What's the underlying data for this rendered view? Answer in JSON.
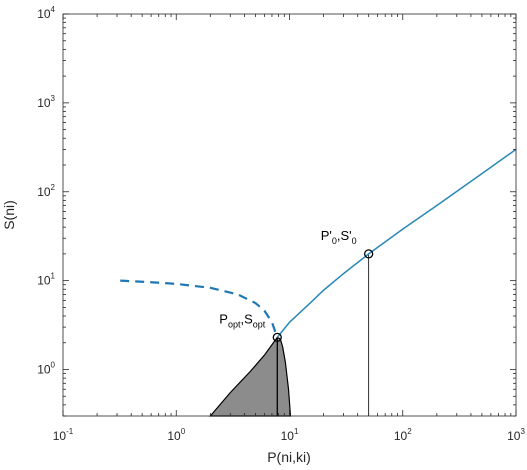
{
  "chart_data": {
    "type": "line",
    "xlabel": "P(ni,ki)",
    "ylabel": "S(ni)",
    "xscale": "log",
    "yscale": "log",
    "xlim": [
      0.1,
      1000
    ],
    "ylim": [
      0.3,
      10000
    ],
    "xticks": [
      {
        "base": "10",
        "exp": "-1",
        "value": 0.1
      },
      {
        "base": "10",
        "exp": "0",
        "value": 1
      },
      {
        "base": "10",
        "exp": "1",
        "value": 10
      },
      {
        "base": "10",
        "exp": "2",
        "value": 100
      },
      {
        "base": "10",
        "exp": "3",
        "value": 1000
      }
    ],
    "yticks": [
      {
        "base": "10",
        "exp": "0",
        "value": 1
      },
      {
        "base": "10",
        "exp": "1",
        "value": 10
      },
      {
        "base": "10",
        "exp": "2",
        "value": 100
      },
      {
        "base": "10",
        "exp": "3",
        "value": 1000
      },
      {
        "base": "10",
        "exp": "4",
        "value": 10000
      }
    ],
    "grid": false,
    "series": [
      {
        "style": "dashed",
        "color": "#1f77b4",
        "x": [
          0.32,
          0.6,
          1.0,
          2.0,
          3.5,
          5.0,
          6.0,
          7.0,
          7.8
        ],
        "y": [
          10.0,
          9.6,
          9.2,
          8.3,
          7.0,
          5.6,
          4.6,
          3.4,
          2.3
        ]
      },
      {
        "style": "solid",
        "color": "#2a88b8",
        "x": [
          7.8,
          10,
          15,
          20,
          30,
          50,
          100,
          200,
          500,
          1000
        ],
        "y": [
          2.3,
          3.4,
          5.5,
          7.8,
          12,
          20,
          38,
          70,
          160,
          300
        ]
      }
    ],
    "shaded_region": {
      "color": "#8c8c8c",
      "x": [
        2.0,
        3.0,
        4.5,
        6.0,
        7.0,
        7.8,
        8.3,
        8.7,
        9.2,
        9.8,
        10.2
      ],
      "y": [
        0.3,
        0.55,
        0.95,
        1.45,
        1.9,
        2.3,
        2.2,
        1.8,
        1.2,
        0.6,
        0.3
      ]
    },
    "vertical_lines": [
      {
        "x": 7.8,
        "y": 2.3
      },
      {
        "x": 50,
        "y": 20
      }
    ],
    "points": [
      {
        "x": 7.8,
        "y": 2.3,
        "label": {
          "parts": [
            {
              "text": "P",
              "sub": ""
            },
            {
              "text": "",
              "sub": "opt"
            },
            {
              "text": ",S",
              "sub": ""
            },
            {
              "text": "",
              "sub": "opt"
            }
          ]
        }
      },
      {
        "x": 50,
        "y": 20,
        "label": {
          "parts": [
            {
              "text": "P'",
              "sub": ""
            },
            {
              "text": "",
              "sub": "0"
            },
            {
              "text": ",S'",
              "sub": ""
            },
            {
              "text": "",
              "sub": "0"
            }
          ]
        }
      }
    ]
  }
}
